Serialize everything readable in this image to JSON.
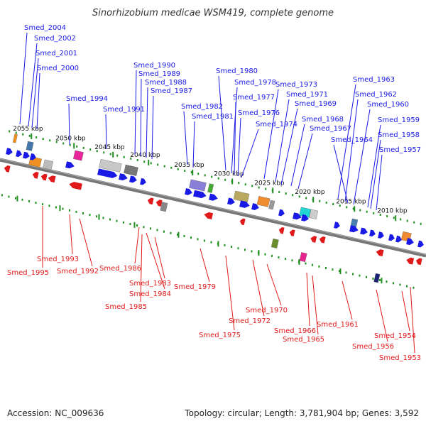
{
  "title": "Sinorhizobium medicae WSM419, complete genome",
  "footer": {
    "accession": "Accession: NC_009636",
    "summary": "Topology: circular; Length: 3,781,904 bp; Genes: 3,592"
  },
  "colors": {
    "forward": "#1a1ae6",
    "reverse": "#e01a1a",
    "backbone": "#777777",
    "ticks": "#1f8f1f"
  },
  "ticks": [
    "2055 kbp",
    "2050 kbp",
    "2045 kbp",
    "2040 kbp",
    "2035 kbp",
    "2030 kbp",
    "2025 kbp",
    "2020 kbp",
    "2015 kbp",
    "2010 kbp"
  ],
  "forward_genes": [
    "Smed_2004",
    "Smed_2002",
    "Smed_2001",
    "Smed_2000",
    "Smed_1994",
    "Smed_1991",
    "Smed_1990",
    "Smed_1989",
    "Smed_1988",
    "Smed_1987",
    "Smed_1982",
    "Smed_1981",
    "Smed_1980",
    "Smed_1978",
    "Smed_1977",
    "Smed_1976",
    "Smed_1974",
    "Smed_1973",
    "Smed_1971",
    "Smed_1969",
    "Smed_1968",
    "Smed_1967",
    "Smed_1964",
    "Smed_1963",
    "Smed_1962",
    "Smed_1960",
    "Smed_1959",
    "Smed_1958",
    "Smed_1957"
  ],
  "reverse_genes": [
    "Smed_1995",
    "Smed_1993",
    "Smed_1992",
    "Smed_1986",
    "Smed_1984",
    "Smed_1985",
    "Smed_1983",
    "Smed_1979",
    "Smed_1975",
    "Smed_1972",
    "Smed_1970",
    "Smed_1966",
    "Smed_1965",
    "Smed_1961",
    "Smed_1956",
    "Smed_1954",
    "Smed_1953"
  ]
}
